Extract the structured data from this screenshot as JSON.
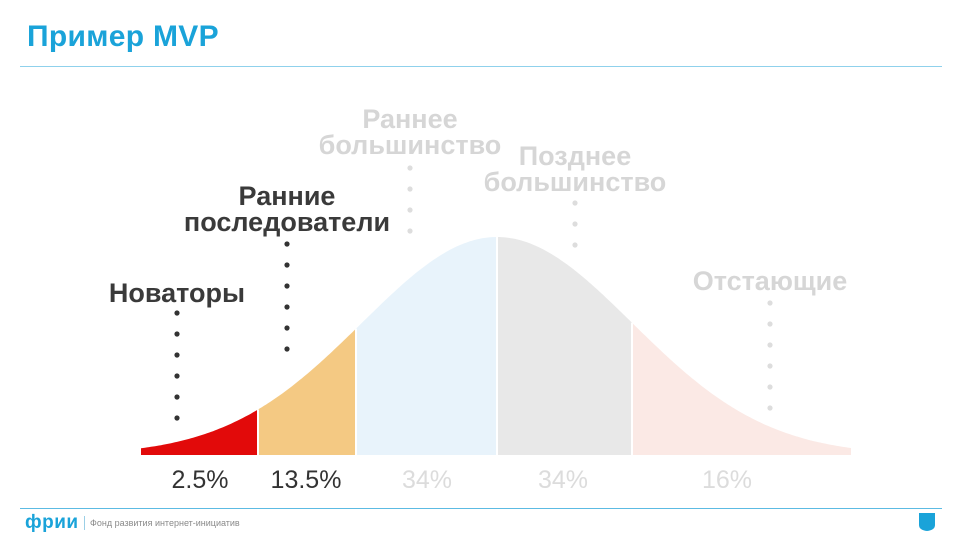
{
  "title": "Пример MVP",
  "footer": {
    "logo": "фрии",
    "tagline": "Фонд развития интернет-инициатив"
  },
  "colors": {
    "accent": "#1aa3d9",
    "innovators": "#e20a0a",
    "early_adopters": "#f4c983",
    "early_majority": "#e8f3fb",
    "late_majority": "#e8e8e8",
    "laggards": "#fbe9e5"
  },
  "chart_data": {
    "type": "area",
    "segments": [
      {
        "name_lines": [
          "Новаторы"
        ],
        "share": "2.5%",
        "highlighted": true
      },
      {
        "name_lines": [
          "Ранние",
          "последователи"
        ],
        "share": "13.5%",
        "highlighted": true
      },
      {
        "name_lines": [
          "Раннее",
          "большинство"
        ],
        "share": "34%",
        "highlighted": false
      },
      {
        "name_lines": [
          "Позднее",
          "большинство"
        ],
        "share": "34%",
        "highlighted": false
      },
      {
        "name_lines": [
          "Отстающие"
        ],
        "share": "16%",
        "highlighted": false
      }
    ]
  }
}
